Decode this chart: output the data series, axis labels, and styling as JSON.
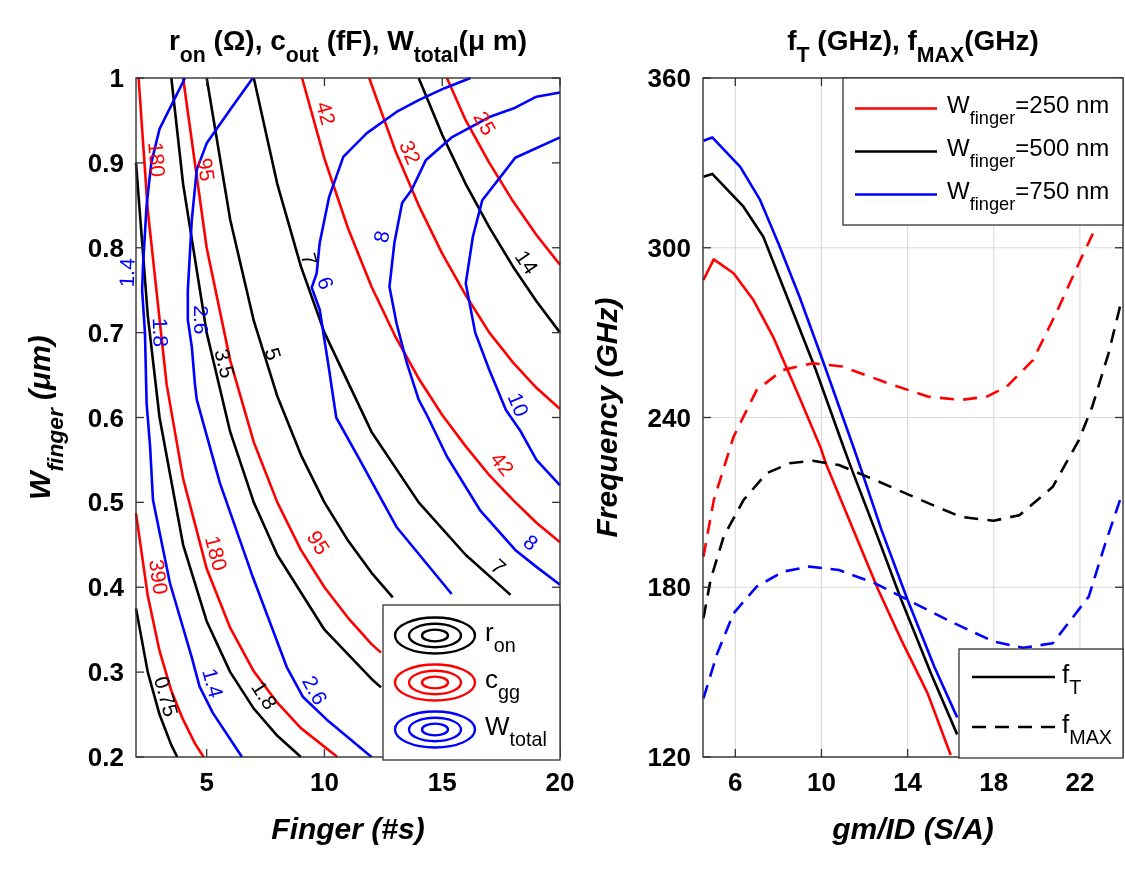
{
  "chart_data": [
    {
      "type": "line",
      "title": "r$_{on}$ (Ω), c$_{out}$ (fF), W$_{total}$(μ m)",
      "xlabel": "Finger (#s)",
      "ylabel": "W$_{finger}$  (μm)",
      "xlim": [
        2,
        20
      ],
      "ylim": [
        0.2,
        1
      ],
      "xticks": [
        5,
        10,
        15,
        20
      ],
      "yticks": [
        0.2,
        0.3,
        0.4,
        0.5,
        0.6,
        0.7,
        0.8,
        0.9,
        1
      ],
      "grid": false,
      "legend": "bottom right",
      "series": [
        {
          "name": "r$_{on}$",
          "color": "#000000",
          "x": [
            2,
            2.5,
            3,
            3.5,
            3.75
          ],
          "values": [
            0.375,
            0.3,
            0.25,
            0.214,
            0.2
          ]
        },
        {
          "color": "#000000",
          "x": [
            2,
            2.5,
            3,
            4,
            5,
            6,
            7,
            8,
            9
          ],
          "values": [
            0.9,
            0.72,
            0.6,
            0.45,
            0.36,
            0.3,
            0.257,
            0.225,
            0.2
          ]
        },
        {
          "color": "#000000",
          "x": [
            3.5,
            4,
            5,
            6,
            7,
            8,
            10,
            12,
            12.4
          ],
          "values": [
            1,
            0.875,
            0.7,
            0.583,
            0.5,
            0.438,
            0.35,
            0.292,
            0.282
          ]
        },
        {
          "color": "#000000",
          "x": [
            5,
            6,
            7,
            8,
            9,
            10,
            11,
            12,
            12.9
          ],
          "values": [
            1,
            0.833,
            0.714,
            0.625,
            0.556,
            0.5,
            0.455,
            0.417,
            0.388
          ]
        },
        {
          "color": "#000000",
          "x": [
            7,
            8,
            9,
            10,
            12,
            14,
            16,
            17.9
          ],
          "values": [
            1,
            0.875,
            0.778,
            0.7,
            0.583,
            0.5,
            0.438,
            0.391
          ]
        },
        {
          "color": "#000000",
          "x": [
            14,
            15,
            16,
            17,
            18,
            19,
            20
          ],
          "values": [
            1,
            0.933,
            0.875,
            0.824,
            0.778,
            0.737,
            0.7
          ]
        },
        {
          "name": "c$_{gg}$",
          "color": "#ff0000",
          "x": [
            2,
            2.5,
            3,
            3.5,
            4,
            4.5,
            4.87
          ],
          "values": [
            0.487,
            0.39,
            0.325,
            0.278,
            0.244,
            0.216,
            0.2
          ]
        },
        {
          "color": "#ff0000",
          "x": [
            2.11,
            2.5,
            3.3,
            4,
            5,
            6,
            7,
            8,
            9,
            10.55
          ],
          "values": [
            1,
            0.844,
            0.639,
            0.528,
            0.422,
            0.352,
            0.301,
            0.264,
            0.234,
            0.2
          ]
        },
        {
          "color": "#ff0000",
          "x": [
            4,
            5,
            6,
            7,
            8,
            9,
            10,
            11,
            12,
            12.4
          ],
          "values": [
            1,
            0.8,
            0.667,
            0.571,
            0.5,
            0.444,
            0.4,
            0.364,
            0.333,
            0.323
          ]
        },
        {
          "color": "#ff0000",
          "x": [
            9.05,
            10,
            11,
            12,
            13,
            14,
            15,
            16,
            17,
            18,
            19,
            20
          ],
          "values": [
            1,
            0.905,
            0.823,
            0.754,
            0.696,
            0.646,
            0.603,
            0.566,
            0.532,
            0.503,
            0.476,
            0.453
          ]
        },
        {
          "color": "#ff0000",
          "x": [
            11.9,
            13,
            14,
            15,
            16,
            17,
            18,
            19,
            20
          ],
          "values": [
            1,
            0.915,
            0.85,
            0.793,
            0.744,
            0.7,
            0.665,
            0.635,
            0.61
          ]
        },
        {
          "color": "#ff0000",
          "x": [
            15.2,
            16,
            17,
            18,
            19,
            20
          ],
          "values": [
            1,
            0.95,
            0.9,
            0.855,
            0.815,
            0.78
          ]
        },
        {
          "name": "W$_{total}$",
          "color": "#0000ff",
          "x": [
            4.08,
            3.0,
            2.65,
            2.45,
            2.3,
            2.26,
            2.38,
            2.45,
            2.6,
            2.72,
            3.44,
            4.37,
            4.7,
            5.26,
            6.5
          ],
          "values": [
            1,
            0.94,
            0.9,
            0.85,
            0.78,
            0.75,
            0.7,
            0.617,
            0.565,
            0.503,
            0.405,
            0.317,
            0.283,
            0.252,
            0.2
          ]
        },
        {
          "color": "#0000ff",
          "x": [
            6.96,
            5.98,
            5.0,
            4.58,
            4.37,
            4.2,
            4.2,
            4.37,
            4.5,
            4.58,
            5.56,
            6.96,
            8.4,
            9.08,
            10.1,
            12.0
          ],
          "values": [
            1,
            0.962,
            0.923,
            0.892,
            0.833,
            0.75,
            0.715,
            0.683,
            0.64,
            0.621,
            0.523,
            0.412,
            0.306,
            0.271,
            0.244,
            0.2
          ]
        },
        {
          "color": "#0000ff",
          "x": [
            16.2,
            15.1,
            14.0,
            13.06,
            11.8,
            10.8,
            10.2,
            9.8,
            9.67,
            9.46,
            9.8,
            10.2,
            10.5,
            11.5,
            13.06,
            15.4
          ],
          "values": [
            1,
            0.988,
            0.974,
            0.96,
            0.935,
            0.907,
            0.86,
            0.806,
            0.77,
            0.753,
            0.727,
            0.656,
            0.6,
            0.55,
            0.471,
            0.392
          ]
        },
        {
          "color": "#0000ff",
          "x": [
            20,
            19,
            18.1,
            17.0,
            15.4,
            14.3,
            13.7,
            13.3,
            12.97,
            12.76,
            13.06,
            13.5,
            14.0,
            14.4,
            15.2,
            16.6,
            18.1,
            19.0,
            20
          ],
          "values": [
            0.983,
            0.978,
            0.965,
            0.954,
            0.93,
            0.903,
            0.868,
            0.853,
            0.806,
            0.754,
            0.711,
            0.664,
            0.621,
            0.6,
            0.554,
            0.491,
            0.444,
            0.424,
            0.403
          ]
        },
        {
          "color": "#0000ff",
          "x": [
            20,
            18.1,
            16.7,
            16.3,
            16.0,
            16.4,
            17.0,
            17.7,
            18.3,
            19.0,
            20
          ],
          "values": [
            0.93,
            0.906,
            0.856,
            0.813,
            0.758,
            0.7,
            0.656,
            0.609,
            0.585,
            0.55,
            0.52
          ]
        }
      ],
      "annotations": [
        {
          "text": "0.75",
          "x": 2.72,
          "y": 0.267
        },
        {
          "text": "1.8",
          "x": 2.45,
          "y": 0.7
        },
        {
          "text": "1.8",
          "x": 6.96,
          "y": 0.264
        },
        {
          "text": "3.5",
          "x": 5.2,
          "y": 0.66
        },
        {
          "text": "5",
          "x": 7.25,
          "y": 0.67
        },
        {
          "text": "7",
          "x": 8.8,
          "y": 0.782
        },
        {
          "text": "7",
          "x": 17.0,
          "y": 0.412
        },
        {
          "text": "14",
          "x": 18.1,
          "y": 0.774
        },
        {
          "text": "180",
          "x": 2.3,
          "y": 0.903
        },
        {
          "text": "95",
          "x": 4.4,
          "y": 0.89
        },
        {
          "text": "42",
          "x": 9.5,
          "y": 0.954
        },
        {
          "text": "32",
          "x": 13.1,
          "y": 0.906
        },
        {
          "text": "25",
          "x": 16.3,
          "y": 0.939
        },
        {
          "text": "390",
          "x": 2.38,
          "y": 0.41
        },
        {
          "text": "180",
          "x": 4.84,
          "y": 0.436
        },
        {
          "text": "95",
          "x": 9.25,
          "y": 0.444
        },
        {
          "text": "42",
          "x": 17.1,
          "y": 0.535
        },
        {
          "text": "1.4",
          "x": 2.2,
          "y": 0.77
        },
        {
          "text": "1.4",
          "x": 4.7,
          "y": 0.283
        },
        {
          "text": "2.6",
          "x": 4.2,
          "y": 0.715
        },
        {
          "text": "2.6",
          "x": 9.08,
          "y": 0.271
        },
        {
          "text": "6",
          "x": 9.5,
          "y": 0.753
        },
        {
          "text": "8",
          "x": 13.0,
          "y": 0.81
        },
        {
          "text": "8",
          "x": 18.4,
          "y": 0.44
        },
        {
          "text": "10",
          "x": 17.7,
          "y": 0.609
        }
      ]
    },
    {
      "type": "line",
      "title": "f$_{T}$ (GHz), f$_{MAX}$(GHz)",
      "xlabel": "gm/ID (S/A)",
      "ylabel": "Frequency  (GHz)",
      "xlim": [
        4.5,
        24
      ],
      "ylim": [
        120,
        360
      ],
      "xticks": [
        6,
        10,
        14,
        18,
        22
      ],
      "yticks": [
        120,
        180,
        240,
        300,
        360
      ],
      "grid": true,
      "legend": "top right",
      "series": [
        {
          "name": "W$_{finger}$=250 nm",
          "color": "#ff0000",
          "line_style": "solid",
          "x": [
            4.52,
            5.0,
            5.92,
            6.84,
            7.75,
            8.83,
            9.97,
            10.2,
            11.42,
            12.64,
            13.71,
            14.93,
            16.0
          ],
          "values": [
            288.6,
            295.9,
            291,
            281.5,
            268.6,
            249.7,
            229.2,
            223.8,
            201.4,
            179.0,
            161.3,
            142.5,
            120.7
          ]
        },
        {
          "name": "W$_{finger}$=500 nm",
          "color": "#000000",
          "line_style": "solid",
          "x": [
            4.52,
            4.93,
            6.38,
            7.3,
            8.52,
            9.74,
            11.04,
            11.42,
            12.49,
            13.71,
            15.08,
            16.3
          ],
          "values": [
            325.1,
            326.1,
            314.5,
            303.9,
            280.4,
            256.8,
            229.2,
            221.4,
            200.2,
            175.5,
            149.6,
            128
          ]
        },
        {
          "name": "W$_{finger}$=750 nm",
          "color": "#0000ff",
          "line_style": "solid",
          "x": [
            4.52,
            4.93,
            6.23,
            7.15,
            8.06,
            8.98,
            10.05,
            11.5,
            11.88,
            12.79,
            14.0,
            15.24,
            16.3
          ],
          "values": [
            337.8,
            339,
            328.6,
            316.9,
            300.4,
            282.7,
            260.3,
            229.2,
            220.8,
            200.2,
            175.5,
            151.9,
            134
          ]
        },
        {
          "color": "#ff0000",
          "line_style": "dashed",
          "x": [
            4.52,
            5.0,
            5.92,
            6.99,
            8.21,
            9.59,
            10.96,
            13.1,
            14.93,
            16.46,
            17.68,
            18.6,
            19.82,
            20.89,
            21.95,
            22.6
          ],
          "values": [
            190.8,
            210.8,
            233.2,
            249.7,
            256.8,
            259.2,
            258.0,
            252.1,
            247.4,
            246.2,
            247.4,
            250.9,
            260.3,
            276.8,
            294.5,
            305
          ]
        },
        {
          "color": "#000000",
          "line_style": "dashed",
          "x": [
            4.52,
            4.85,
            5.46,
            6.38,
            7.45,
            8.52,
            9.59,
            10.81,
            12.49,
            14.63,
            16.46,
            17.99,
            19.2,
            20.74,
            21.95,
            22.57,
            23.33,
            23.86
          ],
          "values": [
            169,
            182.6,
            197.9,
            210.8,
            220.3,
            223.8,
            224.7,
            223.2,
            217.9,
            210.8,
            204.9,
            203.5,
            205.5,
            215.5,
            232.0,
            243.8,
            262.7,
            279.2
          ]
        },
        {
          "color": "#0000ff",
          "line_style": "dashed",
          "x": [
            4.52,
            5.16,
            5.92,
            6.99,
            8.21,
            9.44,
            10.81,
            12.49,
            14.32,
            16.16,
            17.99,
            19.36,
            20.74,
            22.41,
            23.18,
            23.86
          ],
          "values": [
            140.7,
            156.6,
            170.8,
            180.2,
            185.5,
            187.3,
            186.1,
            181.4,
            174.3,
            167.3,
            160.8,
            158.6,
            160.2,
            176.7,
            195.5,
            210.8
          ]
        }
      ],
      "annotations": [
        "f$_{T}$",
        "f$_{MAX}$"
      ]
    }
  ]
}
